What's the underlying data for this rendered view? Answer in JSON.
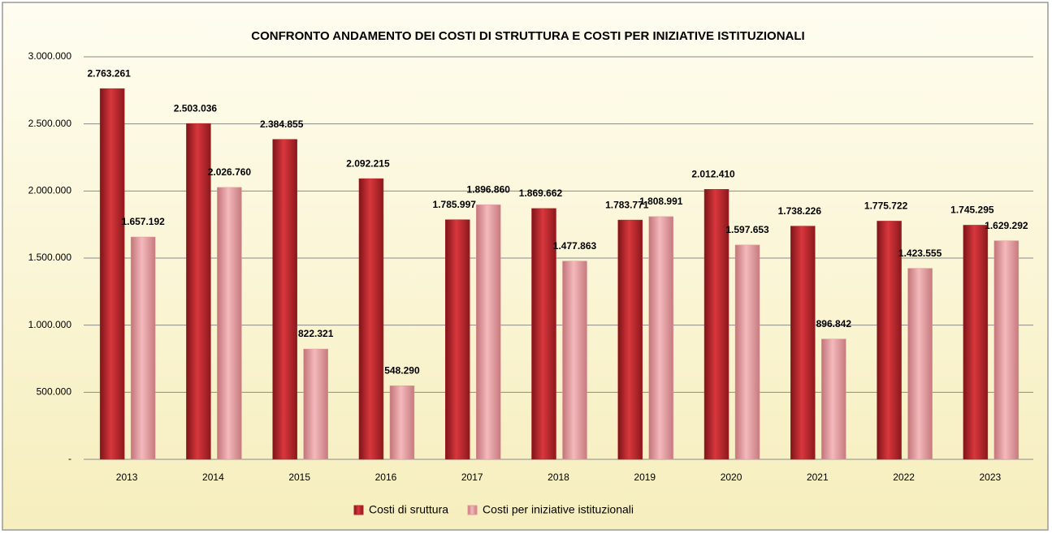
{
  "chart_data": {
    "type": "bar",
    "title": "CONFRONTO ANDAMENTO DEI COSTI DI STRUTTURA E COSTI PER INIZIATIVE ISTITUZIONALI",
    "categories": [
      "2013",
      "2014",
      "2015",
      "2016",
      "2017",
      "2018",
      "2019",
      "2020",
      "2021",
      "2022",
      "2023"
    ],
    "series": [
      {
        "name": "Costi di sruttura",
        "color": "#b3242a",
        "values": [
          2763261,
          2503036,
          2384855,
          2092215,
          1785997,
          1869662,
          1783771,
          2012410,
          1738226,
          1775722,
          1745295
        ],
        "value_labels": [
          "2.763.261",
          "2.503.036",
          "2.384.855",
          "2.092.215",
          "1.785.997",
          "1.869.662",
          "1.783.771",
          "2.012.410",
          "1.738.226",
          "1.775.722",
          "1.745.295"
        ]
      },
      {
        "name": "Costi per iniziative istituzionali",
        "color": "#e3979b",
        "values": [
          1657192,
          2026760,
          822321,
          548290,
          1896860,
          1477863,
          1808991,
          1597653,
          896842,
          1423555,
          1629292
        ],
        "value_labels": [
          "1.657.192",
          "2.026.760",
          "822.321",
          "548.290",
          "1.896.860",
          "1.477.863",
          "1.808.991",
          "1.597.653",
          "896.842",
          "1.423.555",
          "1.629.292"
        ]
      }
    ],
    "ylim": [
      0,
      3000000
    ],
    "yticks": [
      {
        "value": 0,
        "label": "-"
      },
      {
        "value": 500000,
        "label": "500.000"
      },
      {
        "value": 1000000,
        "label": "1.000.000"
      },
      {
        "value": 1500000,
        "label": "1.500.000"
      },
      {
        "value": 2000000,
        "label": "2.000.000"
      },
      {
        "value": 2500000,
        "label": "2.500.000"
      },
      {
        "value": 3000000,
        "label": "3.000.000"
      }
    ],
    "grid": true,
    "legend": "bottom"
  }
}
